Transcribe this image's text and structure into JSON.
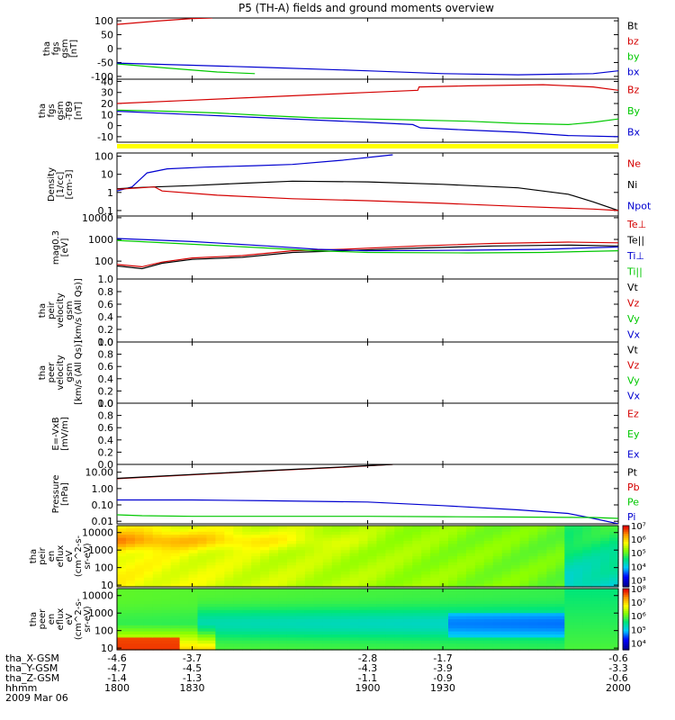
{
  "title": "P5 (TH-A) fields and ground moments overview",
  "colors": {
    "black": "#000000",
    "red": "#d40000",
    "green": "#00c800",
    "blue": "#0000d0",
    "yellow": "#ffff00"
  },
  "chart_data": [
    {
      "id": "fgs_gsm",
      "type": "line",
      "ylabel": [
        "tha",
        "fgs",
        "gsm",
        "[nT]"
      ],
      "ylim": [
        -110,
        110
      ],
      "yticks": [
        "100",
        "50",
        "0",
        "-50",
        "-100"
      ],
      "yticks_values": [
        100,
        50,
        0,
        -50,
        -100
      ],
      "legend": [
        {
          "label": "Bt",
          "color": "black"
        },
        {
          "label": "bz",
          "color": "red"
        },
        {
          "label": "by",
          "color": "green"
        },
        {
          "label": "bx",
          "color": "blue"
        }
      ],
      "series": [
        {
          "name": "bz",
          "color": "red",
          "x": [
            1800,
            1816,
            1830,
            1838
          ],
          "y": [
            87,
            99,
            108,
            110
          ]
        },
        {
          "name": "by",
          "color": "green",
          "x": [
            1800,
            1820,
            1840,
            1855
          ],
          "y": [
            -55,
            -70,
            -84,
            -90
          ]
        },
        {
          "name": "bx",
          "color": "blue",
          "x": [
            1800,
            1830,
            1860,
            1900,
            1930,
            1960,
            1990,
            2000
          ],
          "y": [
            -52,
            -60,
            -68,
            -80,
            -90,
            -94,
            -90,
            -80
          ]
        }
      ]
    },
    {
      "id": "fgs_gsm_t89",
      "type": "line",
      "ylabel": [
        "tha",
        "fgs",
        "gsm",
        "-T89",
        "[nT]"
      ],
      "ylim": [
        -15,
        42
      ],
      "yticks": [
        "40",
        "30",
        "20",
        "10",
        "0",
        "-10"
      ],
      "yticks_values": [
        40,
        30,
        20,
        10,
        0,
        -10
      ],
      "legend": [
        {
          "label": "Bz",
          "color": "red"
        },
        {
          "label": "By",
          "color": "green"
        },
        {
          "label": "Bx",
          "color": "blue"
        }
      ],
      "series": [
        {
          "name": "Bz",
          "color": "red",
          "x": [
            1800,
            1830,
            1860,
            1900,
            1920,
            1920.5,
            1940,
            1970,
            1990,
            2000
          ],
          "y": [
            20,
            23,
            26,
            30,
            32,
            35,
            36,
            37,
            35,
            32
          ]
        },
        {
          "name": "By",
          "color": "green",
          "x": [
            1800,
            1820,
            1840,
            1860,
            1880,
            1900,
            1920,
            1940,
            1960,
            1980,
            1990,
            2000
          ],
          "y": [
            14,
            13,
            11.5,
            9,
            7,
            6,
            5,
            4,
            2,
            1,
            3,
            6
          ]
        },
        {
          "name": "Bx",
          "color": "blue",
          "x": [
            1800,
            1830,
            1860,
            1900,
            1918,
            1921,
            1940,
            1960,
            1980,
            2000
          ],
          "y": [
            13,
            10,
            7,
            3,
            1,
            -2,
            -4,
            -6,
            -9,
            -10
          ]
        }
      ]
    },
    {
      "id": "density",
      "type": "line",
      "yscale": "log",
      "ylabel": [
        "Density",
        "[1/cc]",
        "[cm-3]"
      ],
      "ylim": [
        0.05,
        150
      ],
      "yticks": [
        "100",
        "10",
        "1",
        "0.1"
      ],
      "yticks_values": [
        100,
        10,
        1,
        0.1
      ],
      "legend": [
        {
          "label": "Ne",
          "color": "red"
        },
        {
          "label": "Ni",
          "color": "black"
        },
        {
          "label": "Npot",
          "color": "blue"
        }
      ],
      "series": [
        {
          "name": "Npot",
          "color": "blue",
          "x": [
            1800,
            1806,
            1812,
            1820,
            1835,
            1855,
            1870,
            1890,
            1905,
            1910
          ],
          "y": [
            1.2,
            2,
            12,
            20,
            25,
            30,
            35,
            60,
            100,
            120
          ]
        },
        {
          "name": "Ni",
          "color": "black",
          "x": [
            1800,
            1810,
            1830,
            1850,
            1870,
            1900,
            1930,
            1960,
            1980,
            1990,
            2000
          ],
          "y": [
            1.6,
            1.9,
            2.4,
            3.2,
            4.2,
            3.8,
            2.8,
            1.8,
            0.8,
            0.3,
            0.1
          ]
        },
        {
          "name": "Ne",
          "color": "red",
          "x": [
            1800,
            1815,
            1818,
            1840,
            1870,
            1900,
            1930,
            1960,
            1990,
            2000
          ],
          "y": [
            1.5,
            2,
            1.2,
            0.7,
            0.45,
            0.35,
            0.25,
            0.17,
            0.12,
            0.1
          ]
        }
      ]
    },
    {
      "id": "temperature",
      "type": "line",
      "yscale": "log",
      "ylabel": [
        "mag0.3",
        "[eV]"
      ],
      "ylim": [
        15,
        12000
      ],
      "yticks": [
        "10000",
        "1000",
        "100"
      ],
      "yticks_values": [
        10000,
        1000,
        100
      ],
      "legend": [
        {
          "label": "Te⊥",
          "color": "red"
        },
        {
          "label": "Te||",
          "color": "black"
        },
        {
          "label": "Ti⊥",
          "color": "blue"
        },
        {
          "label": "Ti||",
          "color": "green"
        }
      ],
      "series": [
        {
          "name": "Te⊥",
          "color": "red",
          "x": [
            1800,
            1810,
            1818,
            1830,
            1850,
            1870,
            1890,
            1920,
            1950,
            1980,
            2000
          ],
          "y": [
            70,
            55,
            90,
            140,
            180,
            300,
            350,
            500,
            650,
            750,
            700
          ]
        },
        {
          "name": "Te||",
          "color": "black",
          "x": [
            1800,
            1810,
            1818,
            1830,
            1850,
            1870,
            1890,
            1920,
            1950,
            1980,
            2000
          ],
          "y": [
            60,
            45,
            80,
            120,
            150,
            250,
            300,
            400,
            500,
            550,
            500
          ]
        },
        {
          "name": "Ti⊥",
          "color": "blue",
          "x": [
            1800,
            1830,
            1860,
            1880,
            1900,
            1940,
            1970,
            2000
          ],
          "y": [
            1100,
            800,
            500,
            350,
            300,
            320,
            350,
            450
          ]
        },
        {
          "name": "Ti||",
          "color": "green",
          "x": [
            1800,
            1830,
            1860,
            1880,
            1900,
            1940,
            1970,
            2000
          ],
          "y": [
            900,
            600,
            400,
            300,
            250,
            240,
            250,
            300
          ]
        }
      ]
    },
    {
      "id": "peir_velocity",
      "type": "line",
      "ylabel": [
        "tha",
        "peir",
        "velocity",
        "gsm",
        "[km/s (All Qs)]"
      ],
      "ylim": [
        0,
        1
      ],
      "yticks": [
        "1.0",
        "0.8",
        "0.6",
        "0.4",
        "0.2",
        "0.0"
      ],
      "yticks_values": [
        1,
        0.8,
        0.6,
        0.4,
        0.2,
        0
      ],
      "legend": [
        {
          "label": "Vt",
          "color": "black"
        },
        {
          "label": "Vz",
          "color": "red"
        },
        {
          "label": "Vy",
          "color": "green"
        },
        {
          "label": "Vx",
          "color": "blue"
        }
      ],
      "series": []
    },
    {
      "id": "peer_velocity",
      "type": "line",
      "ylabel": [
        "tha",
        "peer",
        "velocity",
        "gsm",
        "[km/s (All Qs)]"
      ],
      "ylim": [
        0,
        1
      ],
      "yticks": [
        "1.0",
        "0.8",
        "0.6",
        "0.4",
        "0.2",
        "0.0"
      ],
      "yticks_values": [
        1,
        0.8,
        0.6,
        0.4,
        0.2,
        0
      ],
      "legend": [
        {
          "label": "Vt",
          "color": "black"
        },
        {
          "label": "Vz",
          "color": "red"
        },
        {
          "label": "Vy",
          "color": "green"
        },
        {
          "label": "Vx",
          "color": "blue"
        }
      ],
      "series": []
    },
    {
      "id": "efield",
      "type": "line",
      "ylabel": [
        "E=-VxB",
        "[mV/m]"
      ],
      "ylim": [
        0,
        1
      ],
      "yticks": [
        "1.0",
        "0.8",
        "0.6",
        "0.4",
        "0.2",
        "0.0"
      ],
      "yticks_values": [
        1,
        0.8,
        0.6,
        0.4,
        0.2,
        0
      ],
      "legend": [
        {
          "label": "Ez",
          "color": "red"
        },
        {
          "label": "Ey",
          "color": "green"
        },
        {
          "label": "Ex",
          "color": "blue"
        }
      ],
      "series": []
    },
    {
      "id": "pressure",
      "type": "line",
      "yscale": "log",
      "ylabel": [
        "Pressure",
        "[nPa]"
      ],
      "ylim": [
        0.007,
        30
      ],
      "yticks": [
        "10.00",
        "1.00",
        "0.10",
        "0.01"
      ],
      "yticks_values": [
        10,
        1,
        0.1,
        0.01
      ],
      "legend": [
        {
          "label": "Pt",
          "color": "black"
        },
        {
          "label": "Pb",
          "color": "red"
        },
        {
          "label": "Pe",
          "color": "green"
        },
        {
          "label": "Pi",
          "color": "blue"
        }
      ],
      "series": [
        {
          "name": "Pb",
          "color": "red",
          "x": [
            1800,
            1830,
            1860,
            1890,
            1910
          ],
          "y": [
            4,
            7,
            12,
            20,
            30
          ]
        },
        {
          "name": "Pt",
          "color": "black",
          "x": [
            1800,
            1830,
            1860,
            1890,
            1910
          ],
          "y": [
            4.2,
            7.3,
            12.5,
            21,
            30
          ]
        },
        {
          "name": "Pi",
          "color": "blue",
          "x": [
            1800,
            1830,
            1860,
            1900,
            1930,
            1960,
            1980,
            1990,
            2000
          ],
          "y": [
            0.2,
            0.2,
            0.18,
            0.15,
            0.09,
            0.05,
            0.03,
            0.015,
            0.007
          ]
        },
        {
          "name": "Pe",
          "color": "green",
          "x": [
            1800,
            1810,
            1830,
            1860,
            1900,
            1930,
            1960,
            1990,
            2000
          ],
          "y": [
            0.025,
            0.022,
            0.02,
            0.02,
            0.02,
            0.019,
            0.018,
            0.017,
            0.015
          ]
        }
      ]
    },
    {
      "id": "peir_en_eflux",
      "type": "heatmap",
      "yscale": "log",
      "ylabel": [
        "tha",
        "peir",
        "en",
        "eflux",
        "eV",
        "(cm^2-s-",
        "sr-eV)"
      ],
      "ylim": [
        8,
        25000
      ],
      "yticks": [
        "10000",
        "1000",
        "100",
        "10"
      ],
      "yticks_values": [
        10000,
        1000,
        100,
        10
      ],
      "colorbar_ticks": [
        "10⁷",
        "10⁶",
        "10⁵",
        "10⁴",
        "10³"
      ],
      "colorbar_range": [
        2.5,
        7
      ]
    },
    {
      "id": "peer_en_eflux",
      "type": "heatmap",
      "yscale": "log",
      "ylabel": [
        "tha",
        "peer",
        "en",
        "eflux",
        "eV",
        "(cm^2-s-",
        "sr-eV)"
      ],
      "ylim": [
        8,
        25000
      ],
      "yticks": [
        "10000",
        "1000",
        "100",
        "10"
      ],
      "yticks_values": [
        10000,
        1000,
        100,
        10
      ],
      "colorbar_ticks": [
        "10⁸",
        "10⁷",
        "10⁶",
        "10⁵",
        "10⁴"
      ],
      "colorbar_range": [
        3.5,
        8
      ]
    }
  ],
  "x_axis": {
    "range": [
      1800,
      2000
    ],
    "row_labels": [
      "tha_X-GSM",
      "tha_Y-GSM",
      "tha_Z-GSM",
      "hhmm",
      "2009 Mar 06"
    ],
    "columns": [
      {
        "x": 1800,
        "values": [
          "-4.6",
          "-4.7",
          "-1.4",
          "1800"
        ]
      },
      {
        "x": 1830,
        "values": [
          "-3.7",
          "-4.5",
          "-1.3",
          "1830"
        ]
      },
      {
        "x": 1900,
        "values": [
          "-2.8",
          "-4.3",
          "-1.1",
          "1900"
        ]
      },
      {
        "x": 1930,
        "values": [
          "-1.7",
          "-3.9",
          "-0.9",
          "1930"
        ]
      },
      {
        "x": 2000,
        "values": [
          "-0.6",
          "-3.3",
          "-0.6",
          "2000"
        ]
      }
    ]
  }
}
